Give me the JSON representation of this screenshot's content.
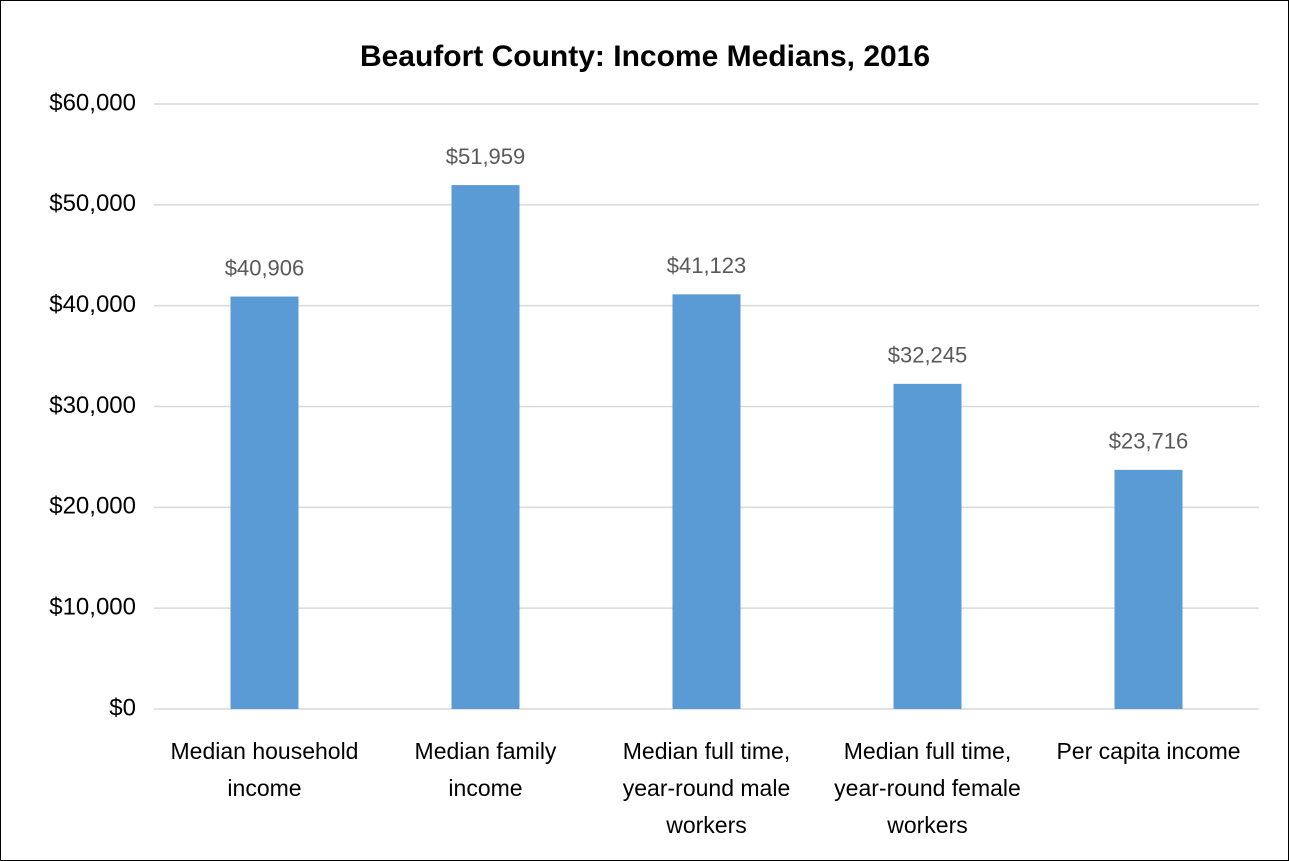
{
  "chart_data": {
    "type": "bar",
    "title": "Beaufort County: Income Medians, 2016",
    "categories": [
      "Median household income",
      "Median family income",
      "Median full time, year-round male workers",
      "Median full time, year-round female workers",
      "Per capita income"
    ],
    "values": [
      40906,
      51959,
      41123,
      32245,
      23716
    ],
    "value_labels": [
      "$40,906",
      "$51,959",
      "$41,123",
      "$32,245",
      "$23,716"
    ],
    "color": "#5b9bd5",
    "ylim": [
      0,
      60000
    ],
    "yticks": [
      {
        "value": 0,
        "label": "$0"
      },
      {
        "value": 10000,
        "label": "$10,000"
      },
      {
        "value": 20000,
        "label": "$20,000"
      },
      {
        "value": 30000,
        "label": "$30,000"
      },
      {
        "value": 40000,
        "label": "$40,000"
      },
      {
        "value": 50000,
        "label": "$50,000"
      },
      {
        "value": 60000,
        "label": "$60,000"
      }
    ],
    "grid": true
  }
}
